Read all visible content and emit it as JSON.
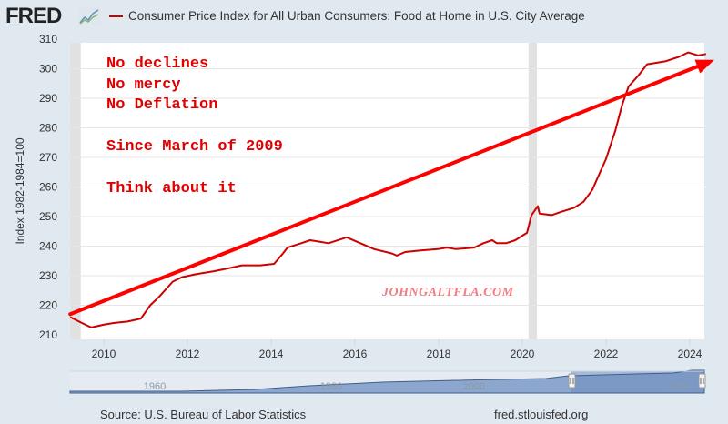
{
  "header": {
    "logo_text": "FRED",
    "logo_icon": "line-chart-icon",
    "title": "Consumer Price Index for All Urban Consumers: Food at Home in U.S. City Average",
    "series_color": "#cc0000"
  },
  "footer": {
    "source": "Source: U.S. Bureau of Labor Statistics",
    "url": "fred.stlouisfed.org"
  },
  "navigator": {
    "labels": [
      "1960",
      "1980",
      "2000",
      "2020"
    ]
  },
  "chart_data": {
    "type": "line",
    "title": "Consumer Price Index for All Urban Consumers: Food at Home in U.S. City Average",
    "xlabel": "",
    "ylabel": "Index 1982-1984=100",
    "xlim": [
      2009.2,
      2024.5
    ],
    "ylim": [
      210,
      310
    ],
    "yticks": [
      210,
      220,
      230,
      240,
      250,
      260,
      270,
      280,
      290,
      300,
      310
    ],
    "xticks": [
      2010,
      2012,
      2014,
      2016,
      2018,
      2020,
      2022,
      2024
    ],
    "grid": true,
    "legend": "top-left",
    "recessions": [
      [
        2009.0,
        2009.45
      ],
      [
        2020.15,
        2020.35
      ]
    ],
    "series": [
      {
        "name": "Consumer Price Index for All Urban Consumers: Food at Home in U.S. City Average",
        "color": "#cc0000",
        "x": [
          2009.2,
          2009.48,
          2009.7,
          2010.02,
          2010.24,
          2010.57,
          2010.89,
          2011.11,
          2011.33,
          2011.65,
          2011.87,
          2012.2,
          2012.63,
          2012.98,
          2013.3,
          2013.74,
          2014.07,
          2014.28,
          2014.39,
          2014.72,
          2014.93,
          2015.15,
          2015.37,
          2015.7,
          2015.8,
          2016.13,
          2016.46,
          2016.89,
          2017.0,
          2017.2,
          2017.54,
          2017.98,
          2018.2,
          2018.41,
          2018.85,
          2019.07,
          2019.28,
          2019.39,
          2019.61,
          2019.83,
          2020.11,
          2020.22,
          2020.37,
          2020.41,
          2020.7,
          2020.91,
          2021.24,
          2021.46,
          2021.67,
          2021.89,
          2022.0,
          2022.22,
          2022.39,
          2022.54,
          2022.76,
          2022.98,
          2023.2,
          2023.41,
          2023.74,
          2023.96,
          2024.2,
          2024.39
        ],
        "values": [
          216.0,
          214.0,
          212.5,
          213.5,
          214.0,
          214.5,
          215.5,
          220.0,
          223.0,
          228.0,
          229.5,
          230.5,
          231.5,
          232.5,
          233.5,
          233.5,
          234.0,
          237.5,
          239.5,
          241.0,
          242.0,
          241.5,
          241.0,
          242.5,
          243.0,
          241.0,
          239.0,
          237.5,
          236.8,
          238.0,
          238.5,
          239.0,
          239.5,
          239.0,
          239.5,
          241.0,
          242.0,
          241.0,
          241.0,
          242.0,
          244.5,
          250.5,
          253.5,
          251.0,
          250.5,
          251.5,
          253.0,
          255.0,
          259.0,
          266.0,
          269.5,
          279.0,
          288.0,
          294.0,
          297.5,
          301.5,
          302.0,
          302.5,
          304.0,
          305.5,
          304.5,
          305.0
        ]
      }
    ],
    "annotations": {
      "text_lines": [
        "No declines",
        "No mercy",
        "No Deflation",
        "",
        "Since March of 2009",
        "",
        "Think about it"
      ],
      "watermark": "JOHNGALTFLA.COM",
      "trend_arrow": {
        "from": [
          2009.2,
          217.0
        ],
        "to": [
          2024.5,
          303.0
        ],
        "color": "#ff0000"
      }
    }
  }
}
